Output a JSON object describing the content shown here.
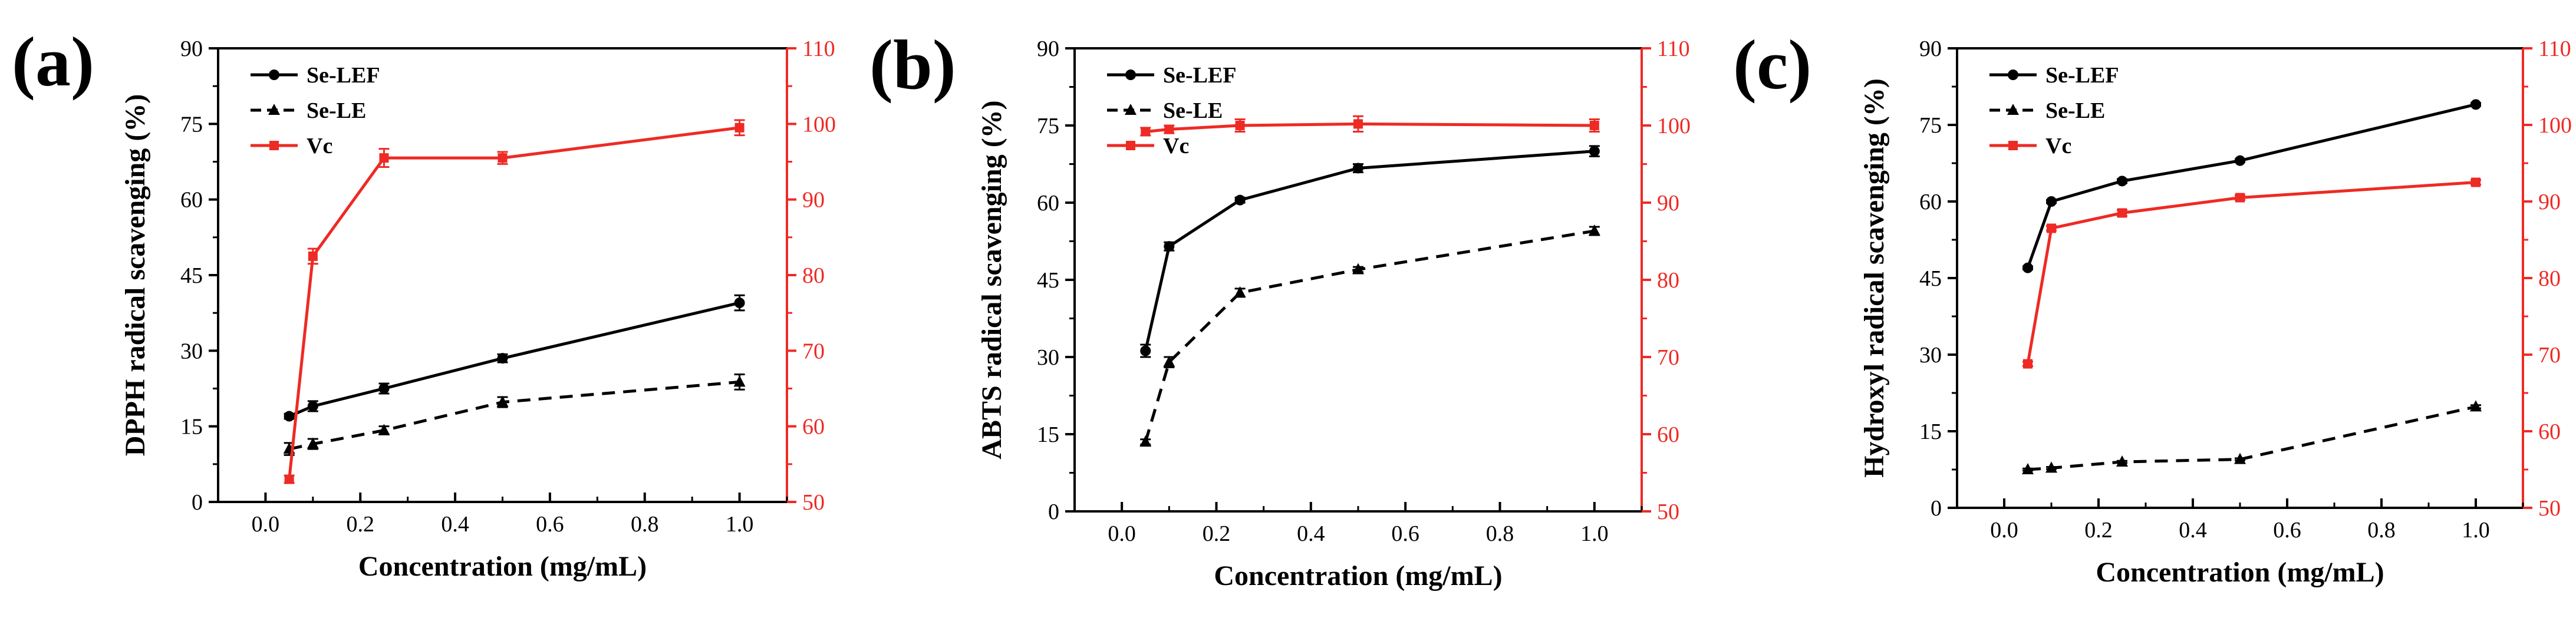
{
  "colors": {
    "black": "#000000",
    "red": "#ee2a24"
  },
  "chart_data": [
    {
      "type": "line",
      "panel_label": "(a)",
      "title": "",
      "xlabel": "Concentration (mg/mL)",
      "ylabel": "DPPH radical scavenging (%)",
      "xlim": [
        -0.1,
        1.1
      ],
      "ylim": [
        0,
        90
      ],
      "y2lim": [
        50,
        110
      ],
      "grid": false,
      "legend": "top-left",
      "x_ticks": [
        "0.0",
        "0.2",
        "0.4",
        "0.6",
        "0.8",
        "1.0"
      ],
      "y_ticks": [
        "0",
        "15",
        "30",
        "45",
        "60",
        "75",
        "90"
      ],
      "y2_ticks": [
        "50",
        "60",
        "70",
        "80",
        "90",
        "100",
        "110"
      ],
      "series": [
        {
          "name": "Se-LEF",
          "axis": "left",
          "color": "#000000",
          "marker": "circle",
          "dash": "solid",
          "x": [
            0.05,
            0.1,
            0.25,
            0.5,
            1.0
          ],
          "y": [
            17,
            19,
            22.5,
            28.5,
            39.5
          ],
          "err": [
            0.5,
            1.0,
            1.0,
            0.8,
            1.5
          ]
        },
        {
          "name": "Se-LE",
          "axis": "left",
          "color": "#000000",
          "marker": "triangle",
          "dash": "dashed",
          "x": [
            0.05,
            0.1,
            0.25,
            0.5,
            1.0
          ],
          "y": [
            10.5,
            11.5,
            14.2,
            19.8,
            23.8
          ],
          "err": [
            1.2,
            1.0,
            0.8,
            1.0,
            1.5
          ]
        },
        {
          "name": "Vc",
          "axis": "right",
          "color": "#ee2a24",
          "marker": "square",
          "dash": "solid",
          "x": [
            0.05,
            0.1,
            0.25,
            0.5,
            1.0
          ],
          "y": [
            53,
            82.5,
            95.5,
            95.5,
            99.5
          ],
          "err": [
            0.5,
            1.0,
            1.2,
            0.8,
            1.0
          ]
        }
      ]
    },
    {
      "type": "line",
      "panel_label": "(b)",
      "title": "",
      "xlabel": "Concentration (mg/mL)",
      "ylabel": "ABTS radical scavenging (%)",
      "xlim": [
        -0.1,
        1.1
      ],
      "ylim": [
        0,
        90
      ],
      "y2lim": [
        50,
        110
      ],
      "grid": false,
      "legend": "top-left",
      "x_ticks": [
        "0.0",
        "0.2",
        "0.4",
        "0.6",
        "0.8",
        "1.0"
      ],
      "y_ticks": [
        "0",
        "15",
        "30",
        "45",
        "60",
        "75",
        "90"
      ],
      "y2_ticks": [
        "50",
        "60",
        "70",
        "80",
        "90",
        "100",
        "110"
      ],
      "series": [
        {
          "name": "Se-LEF",
          "axis": "left",
          "color": "#000000",
          "marker": "circle",
          "dash": "solid",
          "x": [
            0.05,
            0.1,
            0.25,
            0.5,
            1.0
          ],
          "y": [
            31.2,
            51.5,
            60.5,
            66.7,
            70
          ],
          "err": [
            1.2,
            0.8,
            0.5,
            0.8,
            1.0
          ]
        },
        {
          "name": "Se-LE",
          "axis": "left",
          "color": "#000000",
          "marker": "triangle",
          "dash": "dashed",
          "x": [
            0.05,
            0.1,
            0.25,
            0.5,
            1.0
          ],
          "y": [
            13.5,
            29,
            42.5,
            47,
            54.5
          ],
          "err": [
            0.5,
            1.0,
            0.8,
            0.5,
            0.8
          ]
        },
        {
          "name": "Vc",
          "axis": "right",
          "color": "#ee2a24",
          "marker": "square",
          "dash": "solid",
          "x": [
            0.05,
            0.1,
            0.25,
            0.5,
            1.0
          ],
          "y": [
            99.2,
            99.5,
            100,
            100.2,
            100
          ],
          "err": [
            0.5,
            0.5,
            0.8,
            1.0,
            0.8
          ]
        }
      ]
    },
    {
      "type": "line",
      "panel_label": "(c)",
      "title": "",
      "xlabel": "Concentration (mg/mL)",
      "ylabel": "Hydroxyl radical scavenging (%)",
      "xlim": [
        -0.1,
        1.1
      ],
      "ylim": [
        0,
        90
      ],
      "y2lim": [
        50,
        110
      ],
      "grid": false,
      "legend": "top-left",
      "x_ticks": [
        "0.0",
        "0.2",
        "0.4",
        "0.6",
        "0.8",
        "1.0"
      ],
      "y_ticks": [
        "0",
        "15",
        "30",
        "45",
        "60",
        "75",
        "90"
      ],
      "y2_ticks": [
        "50",
        "60",
        "70",
        "80",
        "90",
        "100",
        "110"
      ],
      "series": [
        {
          "name": "Se-LEF",
          "axis": "left",
          "color": "#000000",
          "marker": "circle",
          "dash": "solid",
          "x": [
            0.05,
            0.1,
            0.25,
            0.5,
            1.0
          ],
          "y": [
            47,
            60,
            64,
            68,
            79
          ],
          "err": [
            0.3,
            0.3,
            0.4,
            0.3,
            0.3
          ]
        },
        {
          "name": "Se-LE",
          "axis": "left",
          "color": "#000000",
          "marker": "triangle",
          "dash": "dashed",
          "x": [
            0.05,
            0.1,
            0.25,
            0.5,
            1.0
          ],
          "y": [
            7.5,
            7.8,
            9,
            9.5,
            19.8
          ],
          "err": [
            0.2,
            0.2,
            0.2,
            0.2,
            0.3
          ]
        },
        {
          "name": "Vc",
          "axis": "right",
          "color": "#ee2a24",
          "marker": "square",
          "dash": "solid",
          "x": [
            0.05,
            0.1,
            0.25,
            0.5,
            1.0
          ],
          "y": [
            68.8,
            86.5,
            88.5,
            90.5,
            92.5
          ],
          "err": [
            0.3,
            0.3,
            0.4,
            0.3,
            0.3
          ]
        }
      ]
    }
  ]
}
